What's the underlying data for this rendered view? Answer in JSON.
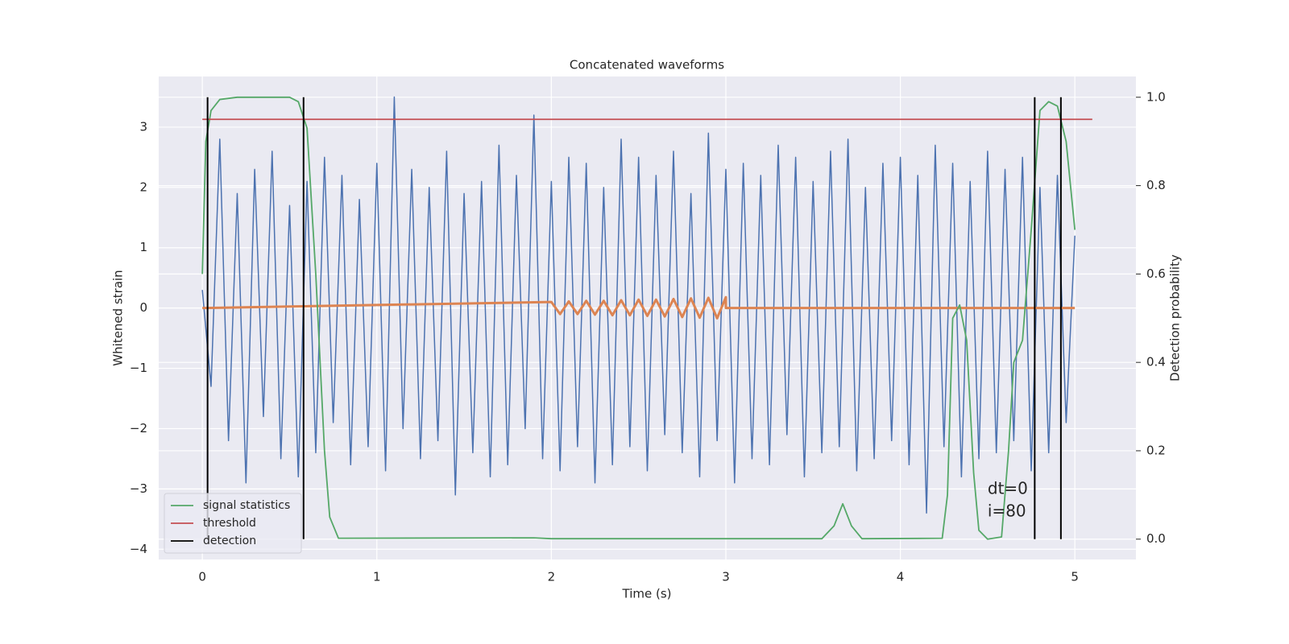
{
  "chart_data": {
    "type": "line",
    "title": "Concatenated waveforms",
    "xlabel": "Time (s)",
    "ylabel": "Whitened strain",
    "y2label": "Detection probability",
    "xlim": [
      -0.25,
      5.35
    ],
    "ylim": [
      -4.17,
      3.84
    ],
    "y2lim": [
      -0.046,
      1.047
    ],
    "xticks": [
      0,
      1,
      2,
      3,
      4,
      5
    ],
    "yticks": [
      {
        "value": -4,
        "label": "−4"
      },
      {
        "value": -3,
        "label": "−3"
      },
      {
        "value": -2,
        "label": "−2"
      },
      {
        "value": -1,
        "label": "−1"
      },
      0,
      1,
      2,
      3
    ],
    "y2ticks": [
      {
        "value": 0,
        "label": "0.0"
      },
      0.2,
      0.4,
      0.6,
      0.8,
      {
        "value": 1,
        "label": "1.0"
      }
    ],
    "grid": true,
    "legend": "lower left",
    "background": "#eaeaf2",
    "annotations": [
      "dt=0",
      "i=80"
    ],
    "series": [
      {
        "color": "#4c72b0",
        "x": [
          0,
          0.05,
          0.1,
          0.15,
          0.2,
          0.25,
          0.3,
          0.35,
          0.4,
          0.45,
          0.5,
          0.55,
          0.6,
          0.65,
          0.7,
          0.75,
          0.8,
          0.85,
          0.9,
          0.95,
          1,
          1.05,
          1.1,
          1.15,
          1.2,
          1.25,
          1.3,
          1.35,
          1.4,
          1.45,
          1.5,
          1.55,
          1.6,
          1.65,
          1.7,
          1.75,
          1.8,
          1.85,
          1.9,
          1.95,
          2,
          2.05,
          2.1,
          2.15,
          2.2,
          2.25,
          2.3,
          2.35,
          2.4,
          2.45,
          2.5,
          2.55,
          2.6,
          2.65,
          2.7,
          2.75,
          2.8,
          2.85,
          2.9,
          2.95,
          3,
          3.05,
          3.1,
          3.15,
          3.2,
          3.25,
          3.3,
          3.35,
          3.4,
          3.45,
          3.5,
          3.55,
          3.6,
          3.65,
          3.7,
          3.75,
          3.8,
          3.85,
          3.9,
          3.95,
          4,
          4.05,
          4.1,
          4.15,
          4.2,
          4.25,
          4.3,
          4.35,
          4.4,
          4.45,
          4.5,
          4.55,
          4.6,
          4.65,
          4.7,
          4.75,
          4.8,
          4.85,
          4.9,
          4.95,
          5
        ],
        "values": [
          0.3,
          -1.3,
          2.8,
          -2.2,
          1.9,
          -2.9,
          2.3,
          -1.8,
          2.6,
          -2.5,
          1.7,
          -2.8,
          2.1,
          -2.4,
          2.5,
          -1.9,
          2.2,
          -2.6,
          1.8,
          -2.3,
          2.4,
          -2.7,
          3.5,
          -2.0,
          2.3,
          -2.5,
          2.0,
          -2.2,
          2.6,
          -3.1,
          1.9,
          -2.4,
          2.1,
          -2.8,
          2.7,
          -2.6,
          2.2,
          -2.0,
          3.2,
          -2.5,
          2.1,
          -2.7,
          2.5,
          -2.3,
          2.4,
          -2.9,
          2.0,
          -2.6,
          2.8,
          -2.3,
          2.5,
          -2.7,
          2.2,
          -2.1,
          2.6,
          -2.4,
          1.9,
          -2.8,
          2.9,
          -2.2,
          2.3,
          -2.9,
          2.4,
          -2.5,
          2.2,
          -2.6,
          2.7,
          -2.1,
          2.5,
          -2.8,
          2.1,
          -2.4,
          2.6,
          -2.3,
          2.8,
          -2.7,
          2.0,
          -2.5,
          2.4,
          -2.2,
          2.5,
          -2.6,
          2.2,
          -3.4,
          2.7,
          -2.3,
          2.4,
          -2.8,
          2.1,
          -2.5,
          2.6,
          -2.4,
          2.3,
          -2.2,
          2.5,
          -2.7,
          2.0,
          -2.4,
          2.2,
          -1.9,
          1.2
        ]
      },
      {
        "color": "#dd8452",
        "x": [
          0,
          2,
          2.05,
          2.1,
          2.15,
          2.2,
          2.25,
          2.3,
          2.35,
          2.4,
          2.45,
          2.5,
          2.55,
          2.6,
          2.65,
          2.7,
          2.75,
          2.8,
          2.85,
          2.9,
          2.95,
          3,
          3,
          5
        ],
        "values": [
          0,
          0.1,
          -0.1,
          0.11,
          -0.1,
          0.12,
          -0.11,
          0.12,
          -0.12,
          0.13,
          -0.12,
          0.14,
          -0.13,
          0.14,
          -0.14,
          0.15,
          -0.15,
          0.16,
          -0.16,
          0.17,
          -0.17,
          0.18,
          0,
          0
        ]
      },
      {
        "name": "signal statistics",
        "color": "#55a868",
        "axis": "y2",
        "x": [
          0,
          0.02,
          0.05,
          0.1,
          0.2,
          0.5,
          0.55,
          0.6,
          0.65,
          0.7,
          0.73,
          0.78,
          1.9,
          2,
          3.55,
          3.62,
          3.67,
          3.72,
          3.78,
          4.24,
          4.27,
          4.3,
          4.34,
          4.38,
          4.42,
          4.45,
          4.5,
          4.58,
          4.62,
          4.65,
          4.7,
          4.75,
          4.8,
          4.85,
          4.9,
          4.95,
          5
        ],
        "values": [
          0.6,
          0.9,
          0.97,
          0.995,
          1,
          1,
          0.99,
          0.93,
          0.6,
          0.2,
          0.05,
          0.002,
          0.003,
          0.001,
          0.001,
          0.03,
          0.08,
          0.03,
          0.001,
          0.002,
          0.1,
          0.5,
          0.53,
          0.45,
          0.15,
          0.02,
          0,
          0.005,
          0.2,
          0.4,
          0.45,
          0.7,
          0.97,
          0.99,
          0.98,
          0.9,
          0.7
        ]
      },
      {
        "name": "threshold",
        "color": "#c44e52",
        "axis": "y2",
        "x": [
          0,
          5.1
        ],
        "values": [
          0.95,
          0.95
        ]
      },
      {
        "name": "detection",
        "color": "#000000",
        "axis": "y2",
        "vlines": true,
        "x": [
          0.03,
          0.58,
          4.77,
          4.92
        ],
        "ymin": 0,
        "ymax": 1
      }
    ]
  }
}
